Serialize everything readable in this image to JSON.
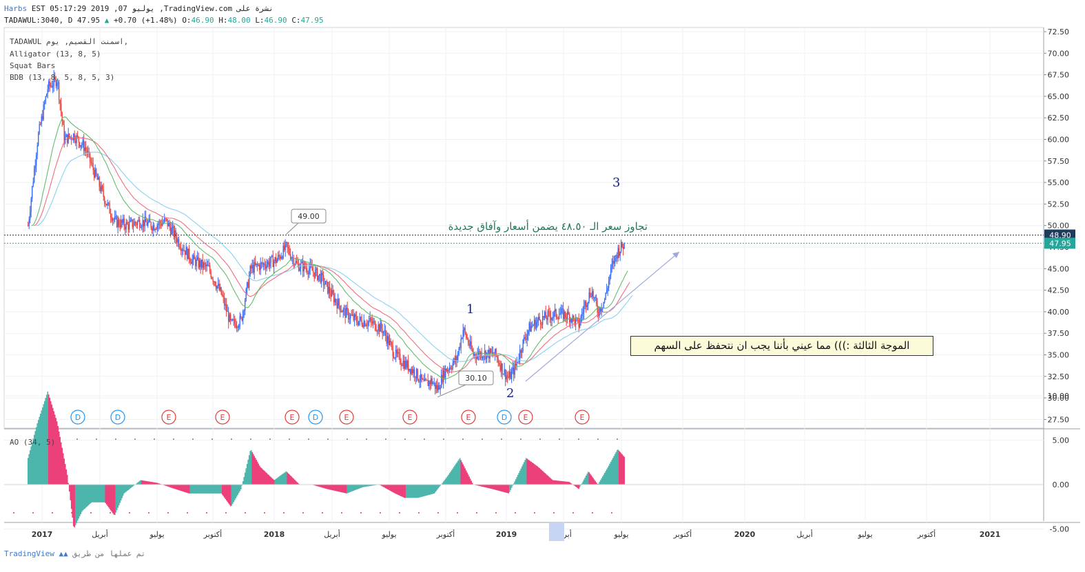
{
  "header": {
    "line1_prefix": "Harbs",
    "line1_text": "EST 05:17:29 2019 ,07 يوليو ,TradingView.com نشرة على",
    "symbol": "TADAWUL:3040, D",
    "last": "47.95",
    "change": "+0.70 (+1.48%)",
    "open_label": "O:",
    "open": "46.90",
    "high_label": "H:",
    "high": "48.00",
    "low_label": "L:",
    "low": "46.90",
    "close_label": "C:",
    "close": "47.95",
    "up_arrow": "▲"
  },
  "legend": {
    "title": "TADAWUL  اسمنت القصيم, يوم,",
    "alligator": "Alligator (13, 8, 5)",
    "squat": "Squat Bars",
    "bdb": "BDB (13, 8, 5, 8, 5, 3)",
    "ao": "AO (34, 5)"
  },
  "annotations": {
    "green_note": "تجاوز سعر الـ ٤٨.٥٠ يضمن أسعار وآفاق جديدة",
    "box_note": "الموجة الثالثة :))) مما عيني بأننا يجب ان نتحفظ على السهم",
    "wave1": "1",
    "wave2": "2",
    "wave3": "3",
    "high_callout": "49.00",
    "low_callout": "30.10"
  },
  "price_labels": {
    "resistance": "48.90",
    "current": "47.95"
  },
  "colors": {
    "up": "#2962ff",
    "down": "#e53935",
    "jaw": "#8ad1f0",
    "teeth": "#f26d7d",
    "lips": "#66bb6a",
    "ao_up": "#4db6ac",
    "ao_down": "#ec407a",
    "current_price_bg": "#26a69a",
    "resistance_bg": "#1f3b5c",
    "trend": "#9fa8da"
  },
  "events": [
    "D",
    "D",
    "E",
    "E",
    "E",
    "D",
    "E",
    "E",
    "E",
    "D",
    "E",
    "E"
  ],
  "footer": {
    "brand": "TradingView",
    "text": "تم عملها من طريق"
  },
  "chart_data": {
    "type": "line",
    "series_kind": "candlestick",
    "symbol": "TADAWUL:3040",
    "x": [
      "2017",
      "أبريل",
      "يوليو",
      "أكتوبر",
      "2018",
      "أبريل",
      "يوليو",
      "أكتوبر",
      "2019",
      "أبريل",
      "يوليو",
      "أكتوبر",
      "2020",
      "أبريل",
      "يوليو",
      "أكتوبر",
      "2021"
    ],
    "x_tick_labels": [
      "2017",
      "أبريل",
      "يوليو",
      "أكتوبر",
      "2018",
      "أبريل",
      "يوليو",
      "أكتوبر",
      "2019",
      "أبريل",
      "يوليو",
      "أكتوبر",
      "2020",
      "أبريل",
      "يوليو",
      "أكتوبر",
      "2021"
    ],
    "y_tick_labels": [
      "72.50",
      "70.00",
      "67.50",
      "65.00",
      "62.50",
      "60.00",
      "57.50",
      "55.00",
      "52.50",
      "50.00",
      "47.50",
      "45.00",
      "42.50",
      "40.00",
      "37.50",
      "35.00",
      "32.50",
      "30.00",
      "27.50"
    ],
    "ylim": [
      26.5,
      72.5
    ],
    "price_path": [
      {
        "t": "2016-12-10",
        "v": 50
      },
      {
        "t": "2016-12-25",
        "v": 60
      },
      {
        "t": "2017-01-10",
        "v": 66
      },
      {
        "t": "2017-01-25",
        "v": 67
      },
      {
        "t": "2017-02-05",
        "v": 60
      },
      {
        "t": "2017-02-20",
        "v": 60.5
      },
      {
        "t": "2017-03-10",
        "v": 59
      },
      {
        "t": "2017-03-25",
        "v": 56
      },
      {
        "t": "2017-04-10",
        "v": 53
      },
      {
        "t": "2017-04-25",
        "v": 50.5
      },
      {
        "t": "2017-05-15",
        "v": 50
      },
      {
        "t": "2017-06-05",
        "v": 50.5
      },
      {
        "t": "2017-06-25",
        "v": 50
      },
      {
        "t": "2017-07-15",
        "v": 50.5
      },
      {
        "t": "2017-08-05",
        "v": 48
      },
      {
        "t": "2017-08-25",
        "v": 46
      },
      {
        "t": "2017-09-20",
        "v": 45
      },
      {
        "t": "2017-10-10",
        "v": 42
      },
      {
        "t": "2017-10-25",
        "v": 38.5
      },
      {
        "t": "2017-11-10",
        "v": 39
      },
      {
        "t": "2017-11-25",
        "v": 45
      },
      {
        "t": "2017-12-15",
        "v": 45.5
      },
      {
        "t": "2018-01-05",
        "v": 46
      },
      {
        "t": "2018-01-20",
        "v": 47.5
      },
      {
        "t": "2018-02-05",
        "v": 45.5
      },
      {
        "t": "2018-02-25",
        "v": 45
      },
      {
        "t": "2018-03-15",
        "v": 44
      },
      {
        "t": "2018-04-01",
        "v": 42
      },
      {
        "t": "2018-04-20",
        "v": 40
      },
      {
        "t": "2018-05-10",
        "v": 39
      },
      {
        "t": "2018-06-01",
        "v": 38.8
      },
      {
        "t": "2018-06-20",
        "v": 38
      },
      {
        "t": "2018-07-10",
        "v": 35
      },
      {
        "t": "2018-07-25",
        "v": 34
      },
      {
        "t": "2018-08-10",
        "v": 33
      },
      {
        "t": "2018-08-25",
        "v": 31.5
      },
      {
        "t": "2018-09-05",
        "v": 32
      },
      {
        "t": "2018-09-15",
        "v": 31
      },
      {
        "t": "2018-09-25",
        "v": 33
      },
      {
        "t": "2018-10-15",
        "v": 34.5
      },
      {
        "t": "2018-10-25",
        "v": 38
      },
      {
        "t": "2018-11-10",
        "v": 35
      },
      {
        "t": "2018-11-25",
        "v": 35.2
      },
      {
        "t": "2018-12-15",
        "v": 35
      },
      {
        "t": "2018-12-28",
        "v": 33
      },
      {
        "t": "2019-01-05",
        "v": 32.3
      },
      {
        "t": "2019-01-15",
        "v": 33.5
      },
      {
        "t": "2019-01-25",
        "v": 36
      },
      {
        "t": "2019-02-05",
        "v": 38
      },
      {
        "t": "2019-02-20",
        "v": 39
      },
      {
        "t": "2019-03-10",
        "v": 39.5
      },
      {
        "t": "2019-03-25",
        "v": 39.8
      },
      {
        "t": "2019-04-10",
        "v": 39.5
      },
      {
        "t": "2019-04-25",
        "v": 38.5
      },
      {
        "t": "2019-05-05",
        "v": 41
      },
      {
        "t": "2019-05-15",
        "v": 42.5
      },
      {
        "t": "2019-05-25",
        "v": 40
      },
      {
        "t": "2019-06-05",
        "v": 41.5
      },
      {
        "t": "2019-06-15",
        "v": 45
      },
      {
        "t": "2019-06-25",
        "v": 47
      },
      {
        "t": "2019-07-07",
        "v": 47.95
      }
    ],
    "notable_points": [
      {
        "t": "2018-01-20",
        "v": 49.0,
        "label": "49.00"
      },
      {
        "t": "2018-09-15",
        "v": 30.1,
        "label": "30.10"
      }
    ],
    "resistance": 48.9,
    "current": 47.95,
    "ao": {
      "name": "AO (34, 5)",
      "y_tick_labels": [
        "10.00",
        "5.00",
        "0.00",
        "-5.00"
      ],
      "ylim": [
        -7.5,
        12
      ],
      "values": [
        {
          "t": "2016-12-10",
          "v": 3
        },
        {
          "t": "2016-12-25",
          "v": 7
        },
        {
          "t": "2017-01-10",
          "v": 10.5
        },
        {
          "t": "2017-01-25",
          "v": 7
        },
        {
          "t": "2017-02-10",
          "v": 1
        },
        {
          "t": "2017-02-20",
          "v": -5
        },
        {
          "t": "2017-03-05",
          "v": -3
        },
        {
          "t": "2017-03-20",
          "v": -2
        },
        {
          "t": "2017-04-10",
          "v": -2
        },
        {
          "t": "2017-04-25",
          "v": -3.5
        },
        {
          "t": "2017-05-10",
          "v": -1
        },
        {
          "t": "2017-06-05",
          "v": 0.5
        },
        {
          "t": "2017-07-01",
          "v": 0.2
        },
        {
          "t": "2017-07-25",
          "v": -0.4
        },
        {
          "t": "2017-08-20",
          "v": -1
        },
        {
          "t": "2017-09-15",
          "v": -1
        },
        {
          "t": "2017-10-10",
          "v": -1
        },
        {
          "t": "2017-10-25",
          "v": -2.5
        },
        {
          "t": "2017-11-10",
          "v": -0.5
        },
        {
          "t": "2017-11-25",
          "v": 4
        },
        {
          "t": "2017-12-10",
          "v": 2
        },
        {
          "t": "2018-01-01",
          "v": 0.5
        },
        {
          "t": "2018-01-20",
          "v": 1.5
        },
        {
          "t": "2018-02-10",
          "v": 0
        },
        {
          "t": "2018-03-01",
          "v": 0
        },
        {
          "t": "2018-03-25",
          "v": -0.5
        },
        {
          "t": "2018-04-25",
          "v": -1
        },
        {
          "t": "2018-05-20",
          "v": -0.3
        },
        {
          "t": "2018-06-15",
          "v": 0
        },
        {
          "t": "2018-07-10",
          "v": -1
        },
        {
          "t": "2018-07-25",
          "v": -1.5
        },
        {
          "t": "2018-08-15",
          "v": -1.5
        },
        {
          "t": "2018-09-10",
          "v": -1
        },
        {
          "t": "2018-10-01",
          "v": 1
        },
        {
          "t": "2018-10-20",
          "v": 3
        },
        {
          "t": "2018-11-10",
          "v": 0
        },
        {
          "t": "2018-12-10",
          "v": -0.5
        },
        {
          "t": "2019-01-05",
          "v": -1
        },
        {
          "t": "2019-02-01",
          "v": 3
        },
        {
          "t": "2019-02-20",
          "v": 2
        },
        {
          "t": "2019-03-15",
          "v": 0.5
        },
        {
          "t": "2019-04-10",
          "v": 0.3
        },
        {
          "t": "2019-04-25",
          "v": -0.5
        },
        {
          "t": "2019-05-10",
          "v": 1.5
        },
        {
          "t": "2019-05-25",
          "v": 0
        },
        {
          "t": "2019-06-10",
          "v": 2
        },
        {
          "t": "2019-06-25",
          "v": 4
        },
        {
          "t": "2019-07-07",
          "v": 3
        }
      ]
    }
  }
}
